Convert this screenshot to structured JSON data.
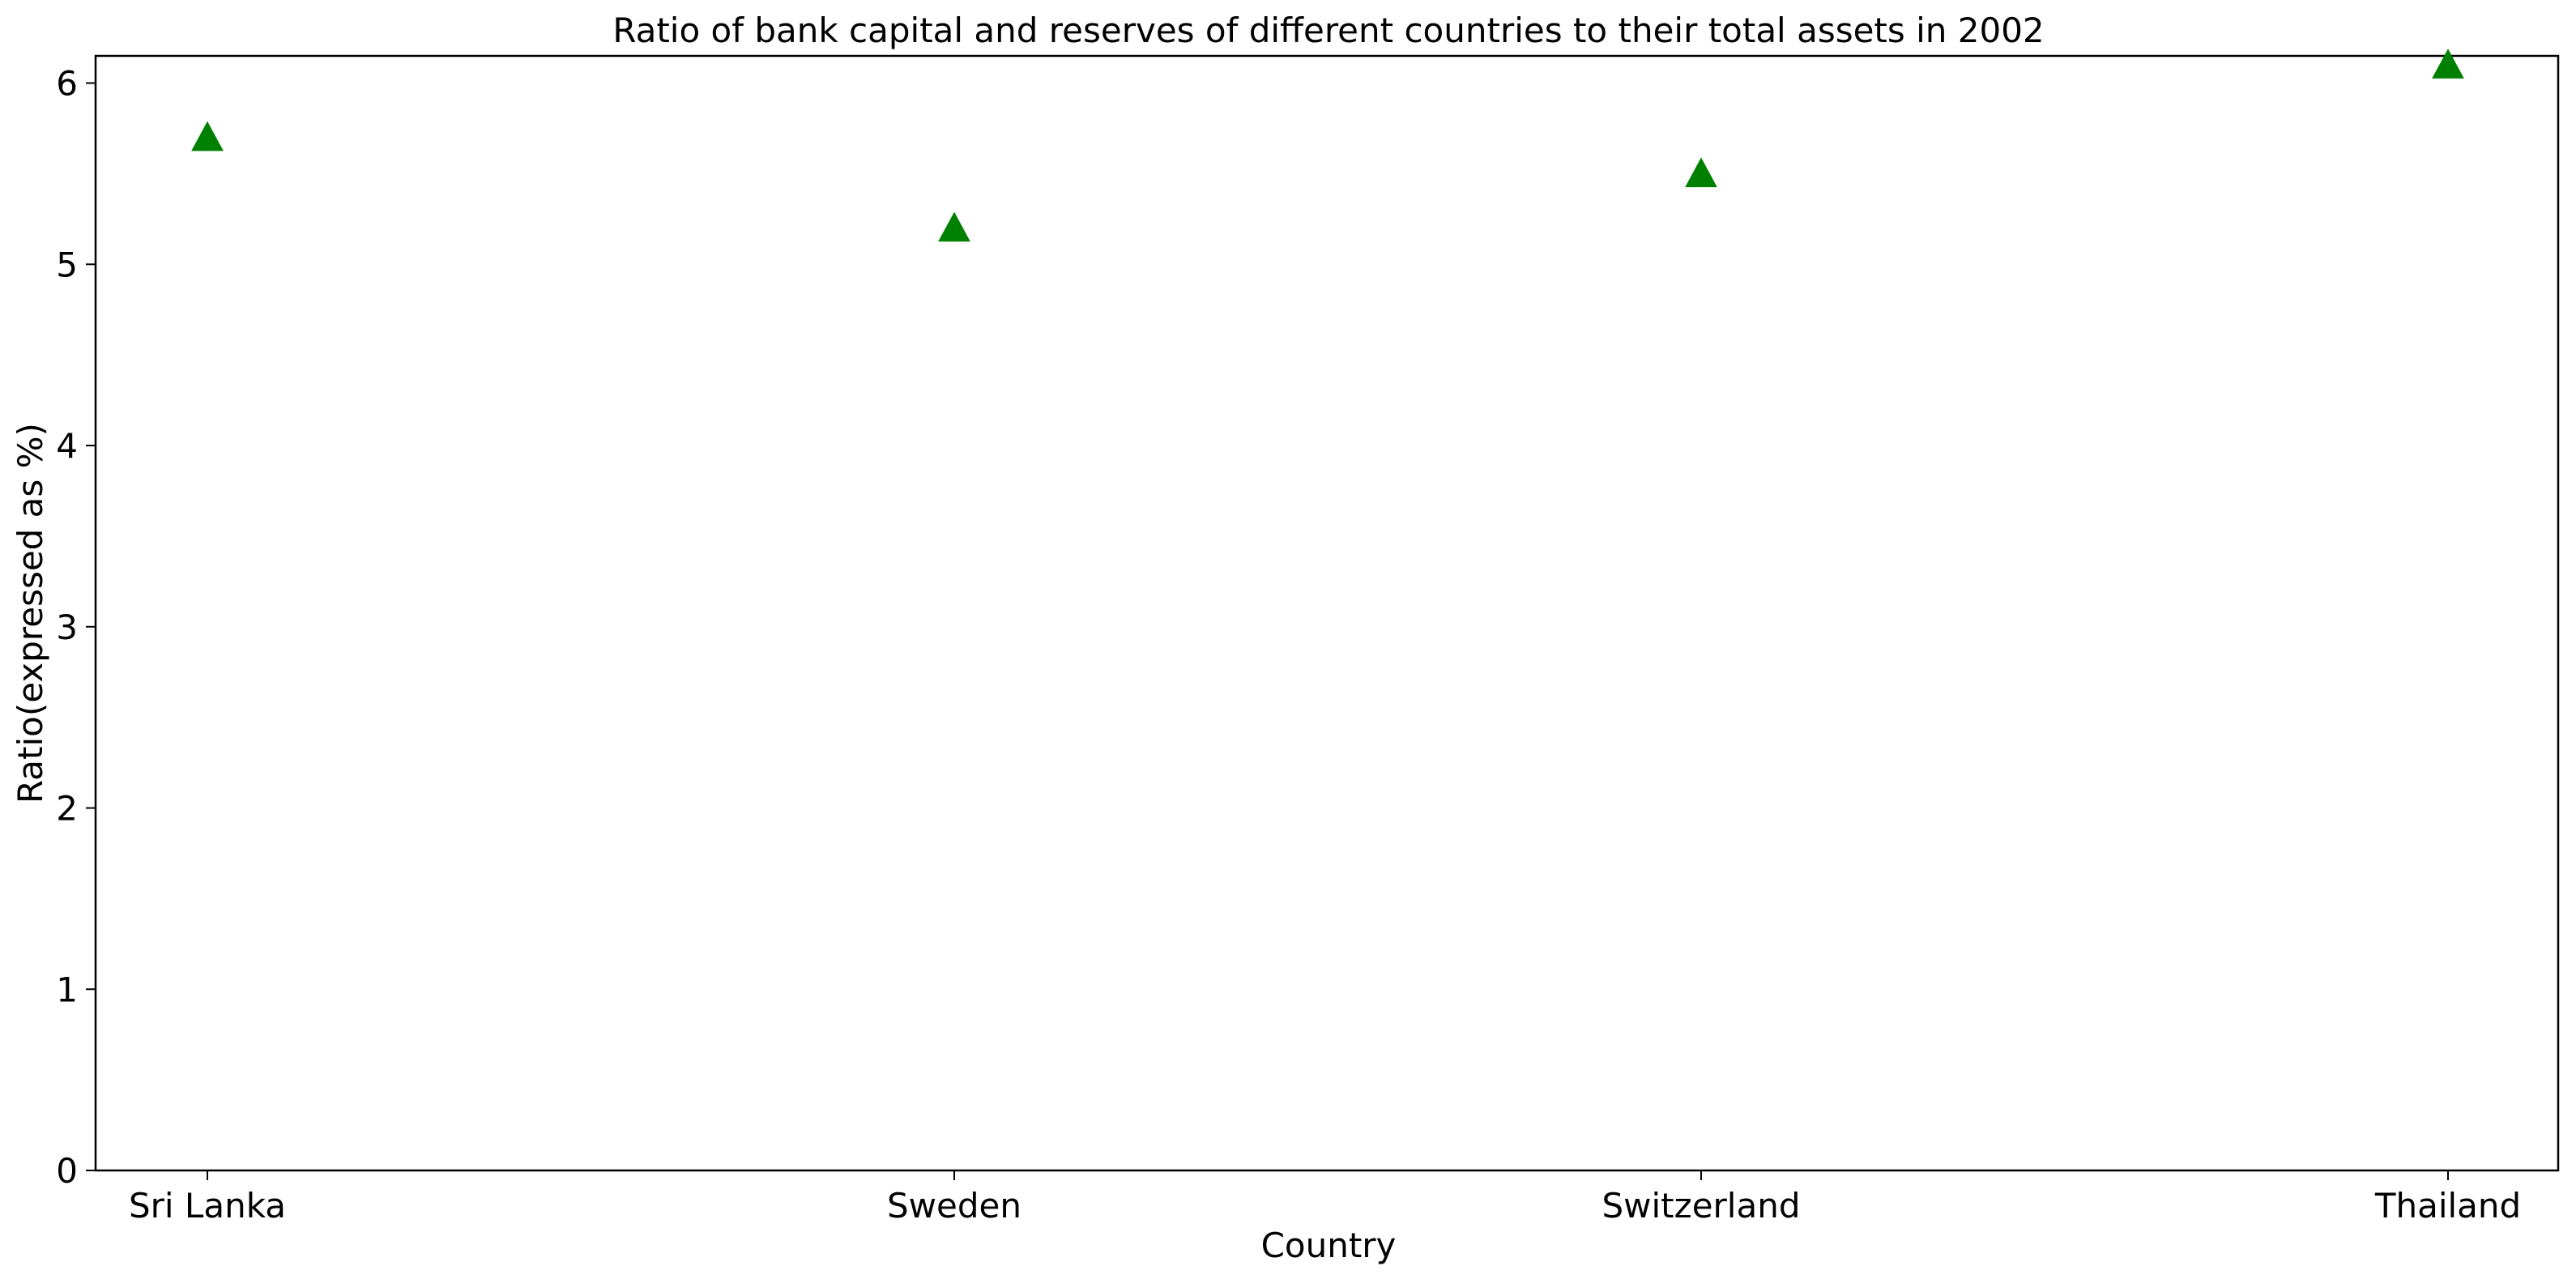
{
  "chart_data": {
    "type": "scatter",
    "title": "Ratio of bank capital and reserves of different countries to their total assets in 2002",
    "xlabel": "Country",
    "ylabel": "Ratio(expressed as %)",
    "categories": [
      "Sri Lanka",
      "Sweden",
      "Switzerland",
      "Thailand"
    ],
    "series": [
      {
        "values": [
          5.7,
          5.2,
          5.5,
          6.1
        ],
        "color": "#008000",
        "marker": "triangle-up"
      }
    ],
    "ylim": [
      0,
      6.15
    ],
    "yticks": [
      0,
      1,
      2,
      3,
      4,
      5,
      6
    ],
    "grid": false,
    "legend": "none"
  }
}
